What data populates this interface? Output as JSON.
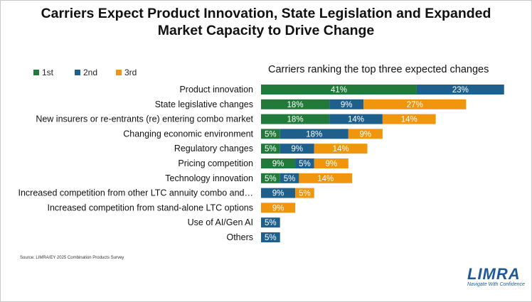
{
  "title_lines": [
    "Carriers Expect Product Innovation, State Legislation and Expanded",
    "Market Capacity to Drive Change"
  ],
  "subtitle": "Carriers ranking the top three expected changes",
  "footnote": "Source: LIMRA/EY 2025 Combination Products Survey",
  "logo": {
    "word": "LIMRA",
    "tagline": "Navigate With Confidence"
  },
  "colors": {
    "first": "#217a3a",
    "second": "#1f5f8b",
    "third": "#f0960e"
  },
  "chart_data": {
    "type": "bar",
    "orientation": "horizontal",
    "stacked": true,
    "legend_position": "top-left",
    "grid": false,
    "categories": [
      "Product innovation",
      "State legislative changes",
      "New insurers or re-entrants (re) entering combo market",
      "Changing economic environment",
      "Regulatory changes",
      "Pricing competition",
      "Technology innovation",
      "Increased competition from other LTC annuity combo and…",
      "Increased competition from stand-alone LTC options",
      "Use of AI/Gen AI",
      "Others"
    ],
    "series": [
      {
        "name": "1st",
        "values": [
          41,
          18,
          18,
          5,
          5,
          9,
          5,
          0,
          0,
          0,
          0
        ]
      },
      {
        "name": "2nd",
        "values": [
          23,
          9,
          14,
          18,
          9,
          5,
          5,
          9,
          0,
          5,
          5
        ]
      },
      {
        "name": "3rd",
        "values": [
          0,
          27,
          14,
          9,
          14,
          9,
          14,
          5,
          9,
          0,
          0
        ]
      }
    ],
    "value_suffix": "%"
  }
}
